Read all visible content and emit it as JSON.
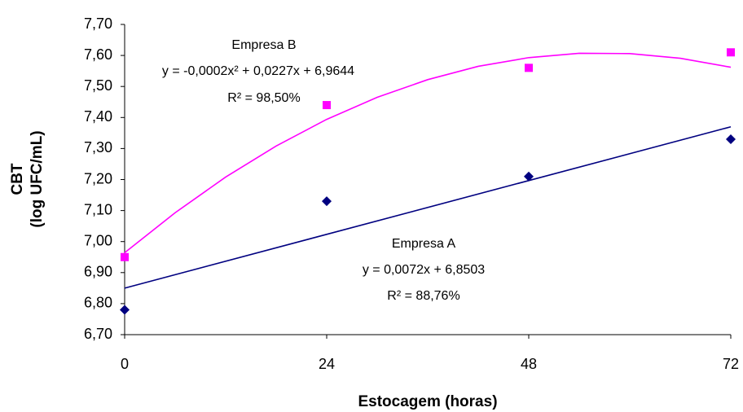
{
  "chart_data": {
    "type": "scatter",
    "xlabel": "Estocagem (horas)",
    "ylabel": [
      "CBT",
      "(log UFC/mL)"
    ],
    "xlim": [
      0,
      72
    ],
    "xticks": [
      0,
      24,
      48,
      72
    ],
    "ylim": [
      6.7,
      7.7
    ],
    "yticks": [
      {
        "value": 6.7,
        "label": "6,70"
      },
      {
        "value": 6.8,
        "label": "6,80"
      },
      {
        "value": 6.9,
        "label": "6,90"
      },
      {
        "value": 7.0,
        "label": "7,00"
      },
      {
        "value": 7.1,
        "label": "7,10"
      },
      {
        "value": 7.2,
        "label": "7,20"
      },
      {
        "value": 7.3,
        "label": "7,30"
      },
      {
        "value": 7.4,
        "label": "7,40"
      },
      {
        "value": 7.5,
        "label": "7,50"
      },
      {
        "value": 7.6,
        "label": "7,60"
      },
      {
        "value": 7.7,
        "label": "7,70"
      }
    ],
    "series": [
      {
        "name": "Empresa A",
        "color": "#000080",
        "marker": "diamond",
        "x": [
          0,
          24,
          48,
          72
        ],
        "values": [
          6.78,
          7.13,
          7.21,
          7.33
        ],
        "equation": "y = 0,0072x + 6,8503",
        "r2": "R² = 88,76%",
        "trendline": {
          "x": [
            0,
            72
          ],
          "values": [
            6.85,
            7.37
          ]
        }
      },
      {
        "name": "Empresa B",
        "color": "#ff00ff",
        "marker": "square",
        "x": [
          0,
          24,
          48,
          72
        ],
        "values": [
          6.95,
          7.44,
          7.56,
          7.61
        ],
        "equation": "y = -0,0002x² + 0,0227x + 6,9644",
        "r2": "R² = 98,50%",
        "trendline": {
          "x": [
            0,
            6,
            12,
            18,
            24,
            30,
            36,
            42,
            48,
            54,
            60,
            66,
            72
          ],
          "values": [
            6.964,
            7.093,
            7.208,
            7.308,
            7.394,
            7.465,
            7.522,
            7.565,
            7.593,
            7.607,
            7.606,
            7.591,
            7.562
          ]
        }
      }
    ]
  }
}
